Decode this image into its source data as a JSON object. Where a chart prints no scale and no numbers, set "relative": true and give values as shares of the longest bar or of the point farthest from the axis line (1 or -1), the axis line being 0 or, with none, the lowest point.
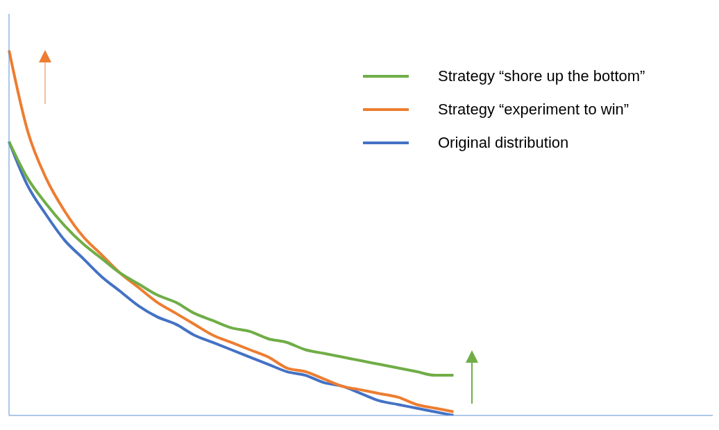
{
  "chart_data": {
    "type": "line",
    "relative": true,
    "legend": "top right",
    "categories": [
      null,
      null,
      null,
      null,
      null,
      null,
      null,
      null,
      null,
      null,
      null,
      null,
      null,
      null,
      null,
      null,
      null,
      null,
      null,
      null,
      null,
      null,
      null,
      null,
      null,
      null,
      null,
      null,
      null,
      null,
      null,
      null,
      null,
      null,
      null,
      null,
      null,
      null,
      null
    ],
    "series": [
      {
        "name": "Strategy “shore up the bottom”",
        "color": "#70ad47",
        "values": [
          0.75,
          0.65,
          0.58,
          0.52,
          0.47,
          0.43,
          0.39,
          0.36,
          0.33,
          0.31,
          0.28,
          0.26,
          0.24,
          0.23,
          0.21,
          0.2,
          0.18,
          0.17,
          0.16,
          0.15,
          0.14,
          0.13,
          0.12,
          0.11,
          0.11,
          null,
          null,
          null,
          null,
          null,
          null,
          null,
          null,
          null,
          null,
          null,
          null,
          null,
          null
        ]
      },
      {
        "name": "Strategy “experiment to win”",
        "color": "#ed7d31",
        "values": [
          1.0,
          0.78,
          0.65,
          0.56,
          0.49,
          0.44,
          0.39,
          0.35,
          0.31,
          0.28,
          0.25,
          0.22,
          0.2,
          0.18,
          0.16,
          0.13,
          0.12,
          0.1,
          0.08,
          0.07,
          0.06,
          0.05,
          0.03,
          0.02,
          0.01,
          null,
          null,
          null,
          null,
          null,
          null,
          null,
          null,
          null,
          null,
          null,
          null,
          null,
          null
        ]
      },
      {
        "name": "Original distribution",
        "color": "#4472c4",
        "values": [
          0.75,
          0.63,
          0.55,
          0.48,
          0.43,
          0.38,
          0.34,
          0.3,
          0.27,
          0.25,
          0.22,
          0.2,
          0.18,
          0.16,
          0.14,
          0.12,
          0.11,
          0.09,
          0.08,
          0.06,
          0.04,
          0.03,
          0.02,
          0.01,
          0.0,
          null,
          null,
          null,
          null,
          null,
          null,
          null,
          null,
          null,
          null,
          null,
          null,
          null,
          null
        ]
      }
    ]
  }
}
